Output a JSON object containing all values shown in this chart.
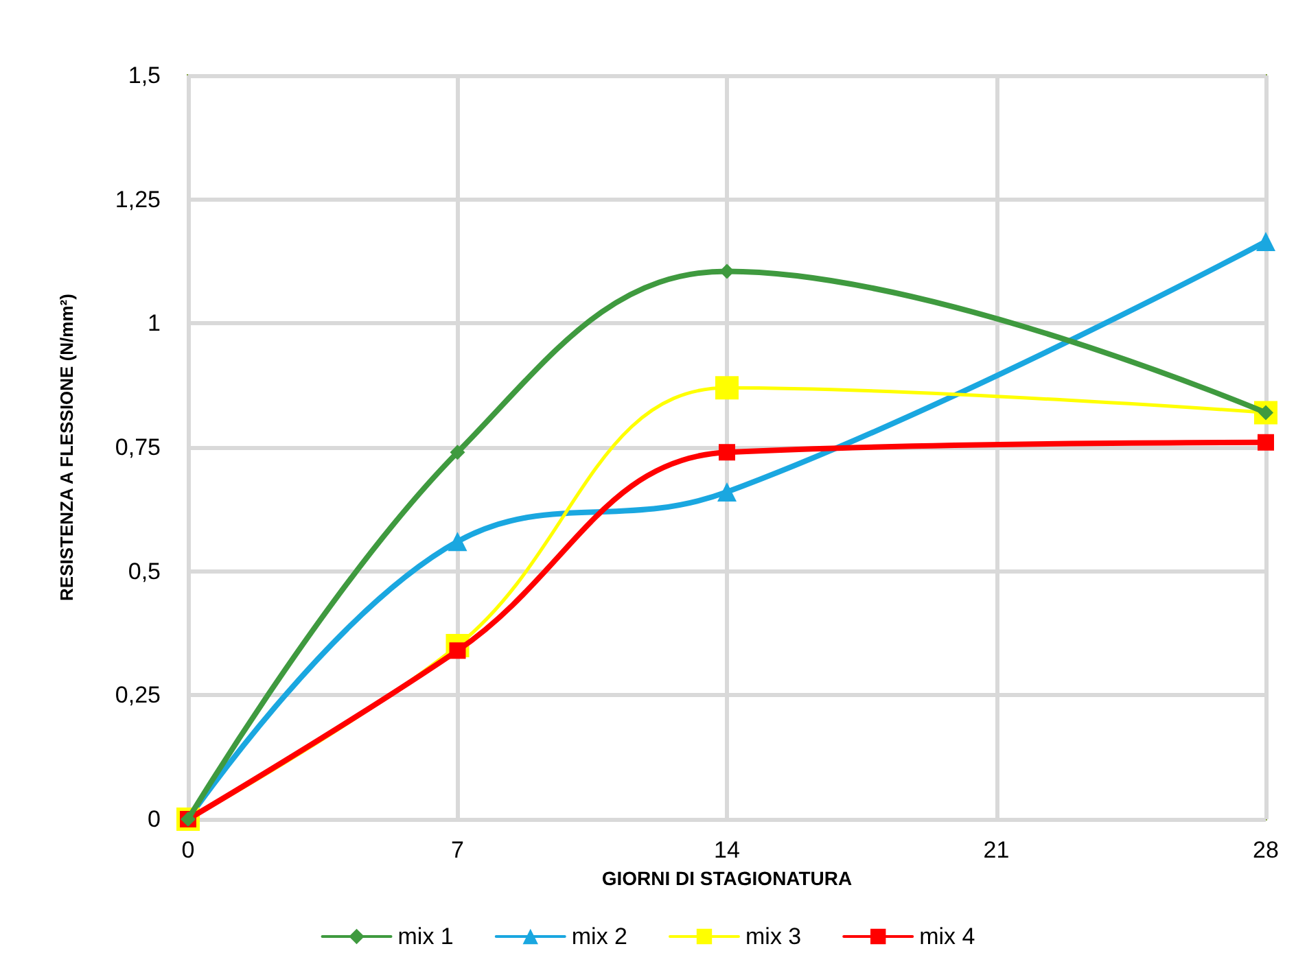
{
  "chart_data": {
    "type": "line",
    "xlabel": "GIORNI DI STAGIONATURA",
    "ylabel": "RESISTENZA A FLESSIONE (N/mm²)",
    "x": [
      0,
      7,
      14,
      28
    ],
    "series": [
      {
        "name": "mix 1",
        "color": "#3f9a3f",
        "marker": "diamond",
        "values": [
          0,
          0.74,
          1.105,
          0.82
        ]
      },
      {
        "name": "mix 2",
        "color": "#1aa7e0",
        "marker": "triangle",
        "values": [
          0,
          0.56,
          0.66,
          1.165
        ]
      },
      {
        "name": "mix 3",
        "color": "#ffff00",
        "marker": "square",
        "values": [
          0,
          0.35,
          0.87,
          0.82
        ]
      },
      {
        "name": "mix 4",
        "color": "#ff0000",
        "marker": "square",
        "values": [
          0,
          0.34,
          0.74,
          0.76
        ]
      }
    ],
    "xlim": [
      0,
      28
    ],
    "xticks": [
      0,
      7,
      14,
      21,
      28
    ],
    "ylim": [
      0,
      1.5
    ],
    "yticks": [
      0,
      {
        "value": 0.25,
        "label": "0,25"
      },
      {
        "value": 0.5,
        "label": "0,5"
      },
      {
        "value": 0.75,
        "label": "0,75"
      },
      1,
      {
        "value": 1.25,
        "label": "1,25"
      },
      {
        "value": 1.5,
        "label": "1,5"
      }
    ],
    "grid": true,
    "legend": "bottom",
    "line_style": "solid"
  }
}
